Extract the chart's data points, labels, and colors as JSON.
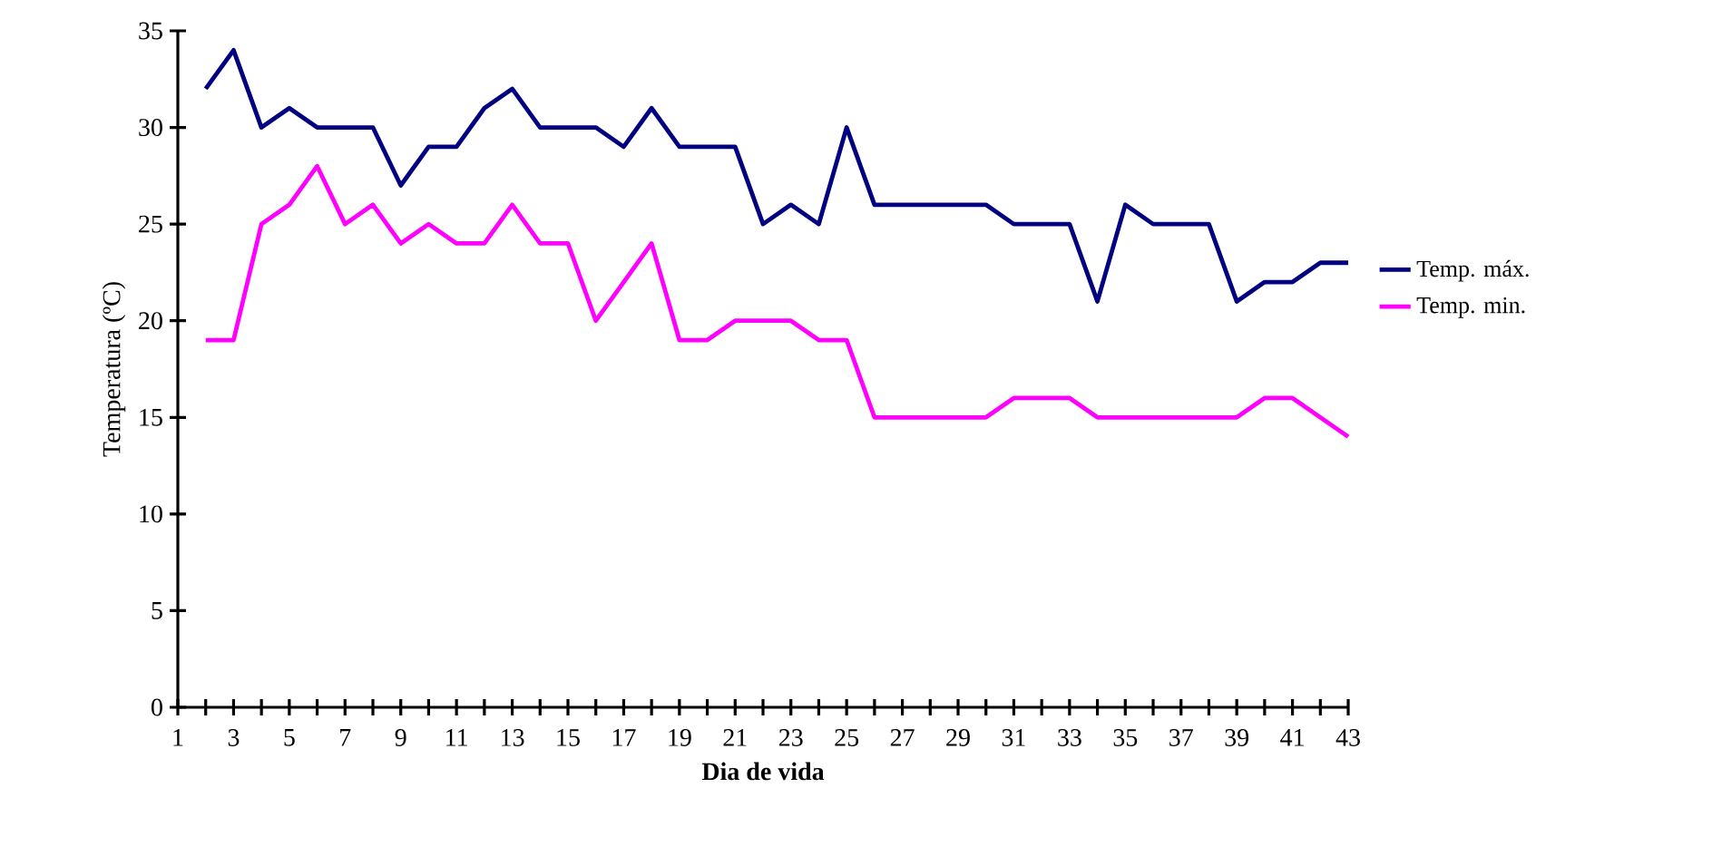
{
  "chart_data": {
    "type": "line",
    "ylabel": "Temperatura (ºC)",
    "xlabel": "Dia de vida",
    "x": [
      2,
      3,
      4,
      5,
      6,
      7,
      8,
      9,
      10,
      11,
      12,
      13,
      14,
      15,
      16,
      17,
      18,
      19,
      20,
      21,
      22,
      23,
      24,
      25,
      26,
      27,
      28,
      29,
      30,
      31,
      32,
      33,
      34,
      35,
      36,
      37,
      38,
      39,
      40,
      41,
      42,
      43
    ],
    "series": [
      {
        "name": "Temp. máx.",
        "color": "#000080",
        "values": [
          32,
          34,
          30,
          31,
          30,
          30,
          30,
          27,
          29,
          29,
          31,
          32,
          30,
          30,
          30,
          29,
          31,
          29,
          29,
          29,
          25,
          26,
          25,
          30,
          26,
          26,
          26,
          26,
          26,
          25,
          25,
          25,
          21,
          26,
          25,
          25,
          25,
          21,
          22,
          22,
          23,
          23
        ]
      },
      {
        "name": "Temp. min.",
        "color": "#ff00ff",
        "values": [
          19,
          19,
          25,
          26,
          28,
          25,
          26,
          24,
          25,
          24,
          24,
          26,
          24,
          24,
          20,
          22,
          24,
          19,
          19,
          20,
          20,
          20,
          19,
          19,
          15,
          15,
          15,
          15,
          15,
          16,
          16,
          16,
          15,
          15,
          15,
          15,
          15,
          15,
          16,
          16,
          15,
          14
        ]
      }
    ],
    "xlim": [
      1,
      43
    ],
    "ylim": [
      0,
      35
    ],
    "yticks": [
      0,
      5,
      10,
      15,
      20,
      25,
      30,
      35
    ],
    "xticks": [
      1,
      {
        "value": 2,
        "label": null
      },
      3,
      {
        "value": 4,
        "label": null
      },
      5,
      {
        "value": 6,
        "label": null
      },
      7,
      {
        "value": 8,
        "label": null
      },
      9,
      {
        "value": 10,
        "label": null
      },
      11,
      {
        "value": 12,
        "label": null
      },
      13,
      {
        "value": 14,
        "label": null
      },
      15,
      {
        "value": 16,
        "label": null
      },
      17,
      {
        "value": 18,
        "label": null
      },
      19,
      {
        "value": 20,
        "label": null
      },
      21,
      {
        "value": 22,
        "label": null
      },
      23,
      {
        "value": 24,
        "label": null
      },
      25,
      {
        "value": 26,
        "label": null
      },
      27,
      {
        "value": 28,
        "label": null
      },
      29,
      {
        "value": 30,
        "label": null
      },
      31,
      {
        "value": 32,
        "label": null
      },
      33,
      {
        "value": 34,
        "label": null
      },
      35,
      {
        "value": 36,
        "label": null
      },
      37,
      {
        "value": 38,
        "label": null
      },
      39,
      {
        "value": 40,
        "label": null
      },
      41,
      {
        "value": 42,
        "label": null
      },
      43
    ],
    "grid": false,
    "legend": "right",
    "marker": "none",
    "line_style": "solid"
  }
}
